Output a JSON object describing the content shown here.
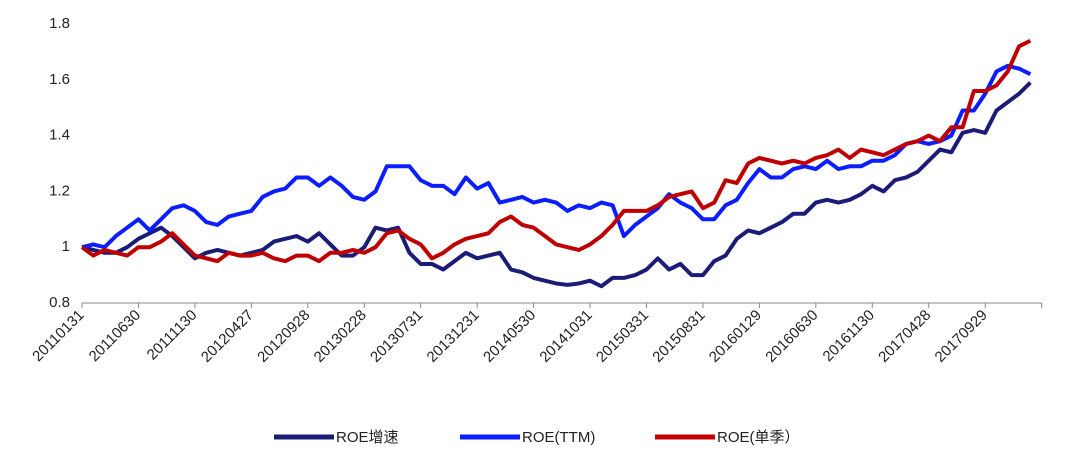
{
  "chart_data": {
    "type": "line",
    "categories": [
      "20110131",
      null,
      null,
      null,
      null,
      "20110630",
      null,
      null,
      null,
      null,
      "20111130",
      null,
      null,
      null,
      null,
      "20120427",
      null,
      null,
      null,
      null,
      "20120928",
      null,
      null,
      null,
      null,
      "20130228",
      null,
      null,
      null,
      null,
      "20130731",
      null,
      null,
      null,
      null,
      "20131231",
      null,
      null,
      null,
      null,
      "20140530",
      null,
      null,
      null,
      null,
      "20141031",
      null,
      null,
      null,
      null,
      "20150331",
      null,
      null,
      null,
      null,
      "20150831",
      null,
      null,
      null,
      null,
      "20160129",
      null,
      null,
      null,
      null,
      "20160630",
      null,
      null,
      null,
      null,
      "20161130",
      null,
      null,
      null,
      null,
      "20170428",
      null,
      null,
      null,
      null,
      "20170929",
      null,
      null,
      null,
      null
    ],
    "series": [
      {
        "name": "ROE增速",
        "color": "#1c1c78",
        "values": [
          1.0,
          0.99,
          0.98,
          0.98,
          1.0,
          1.03,
          1.05,
          1.07,
          1.04,
          1.0,
          0.96,
          0.98,
          0.99,
          0.98,
          0.97,
          0.98,
          0.99,
          1.02,
          1.03,
          1.04,
          1.02,
          1.05,
          1.01,
          0.97,
          0.97,
          1.0,
          1.07,
          1.06,
          1.07,
          0.98,
          0.94,
          0.94,
          0.92,
          0.95,
          0.98,
          0.96,
          0.97,
          0.98,
          0.92,
          0.91,
          0.89,
          0.88,
          0.87,
          0.865,
          0.87,
          0.88,
          0.86,
          0.89,
          0.89,
          0.9,
          0.92,
          0.96,
          0.92,
          0.94,
          0.9,
          0.9,
          0.95,
          0.97,
          1.03,
          1.06,
          1.05,
          1.07,
          1.09,
          1.12,
          1.12,
          1.16,
          1.17,
          1.16,
          1.17,
          1.19,
          1.22,
          1.2,
          1.24,
          1.25,
          1.27,
          1.31,
          1.35,
          1.34,
          1.41,
          1.42,
          1.41,
          1.49,
          1.52,
          1.55,
          1.59
        ]
      },
      {
        "name": "ROE(TTM)",
        "color": "#0a1eff",
        "values": [
          1.0,
          1.01,
          1.0,
          1.04,
          1.07,
          1.1,
          1.06,
          1.1,
          1.14,
          1.15,
          1.13,
          1.09,
          1.08,
          1.11,
          1.12,
          1.13,
          1.18,
          1.2,
          1.21,
          1.25,
          1.25,
          1.22,
          1.25,
          1.22,
          1.18,
          1.17,
          1.2,
          1.29,
          1.29,
          1.29,
          1.24,
          1.22,
          1.22,
          1.19,
          1.25,
          1.21,
          1.23,
          1.16,
          1.17,
          1.18,
          1.16,
          1.17,
          1.16,
          1.13,
          1.15,
          1.14,
          1.16,
          1.15,
          1.04,
          1.08,
          1.11,
          1.14,
          1.19,
          1.16,
          1.14,
          1.1,
          1.1,
          1.15,
          1.17,
          1.23,
          1.28,
          1.25,
          1.25,
          1.28,
          1.29,
          1.28,
          1.31,
          1.28,
          1.29,
          1.29,
          1.31,
          1.31,
          1.33,
          1.37,
          1.38,
          1.37,
          1.38,
          1.4,
          1.49,
          1.49,
          1.55,
          1.63,
          1.65,
          1.64,
          1.62
        ]
      },
      {
        "name": "ROE(单季）",
        "color": "#c00000",
        "values": [
          1.0,
          0.97,
          0.99,
          0.98,
          0.97,
          1.0,
          1.0,
          1.02,
          1.05,
          1.01,
          0.97,
          0.96,
          0.95,
          0.98,
          0.97,
          0.97,
          0.98,
          0.96,
          0.95,
          0.97,
          0.97,
          0.95,
          0.98,
          0.98,
          0.99,
          0.98,
          1.0,
          1.05,
          1.06,
          1.03,
          1.01,
          0.96,
          0.98,
          1.01,
          1.03,
          1.04,
          1.05,
          1.09,
          1.11,
          1.08,
          1.07,
          1.04,
          1.01,
          1.0,
          0.99,
          1.01,
          1.04,
          1.08,
          1.13,
          1.13,
          1.13,
          1.15,
          1.18,
          1.19,
          1.2,
          1.14,
          1.16,
          1.24,
          1.23,
          1.3,
          1.32,
          1.31,
          1.3,
          1.31,
          1.3,
          1.32,
          1.33,
          1.35,
          1.32,
          1.35,
          1.34,
          1.33,
          1.35,
          1.37,
          1.38,
          1.4,
          1.38,
          1.43,
          1.43,
          1.56,
          1.56,
          1.58,
          1.63,
          1.72,
          1.74
        ]
      }
    ],
    "ylim": [
      0.8,
      1.8
    ],
    "yticks": [
      {
        "value": 0.8,
        "label": "0.8"
      },
      1,
      {
        "value": 1.2,
        "label": "1.2"
      },
      {
        "value": 1.4,
        "label": "1.4"
      },
      {
        "value": 1.6,
        "label": "1.6"
      },
      {
        "value": 1.8,
        "label": "1.8"
      }
    ],
    "grid": false,
    "legend": "bottom"
  }
}
